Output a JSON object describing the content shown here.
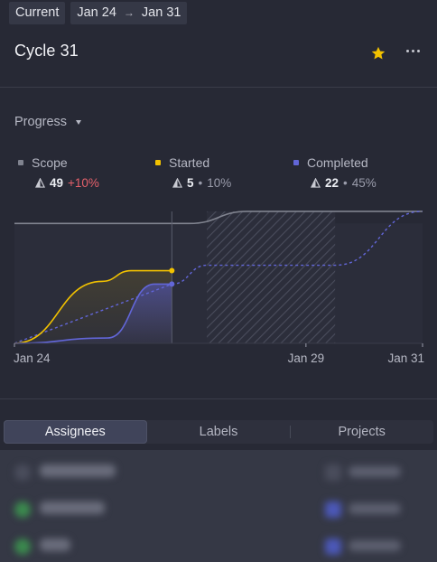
{
  "header": {
    "current_label": "Current",
    "date_start": "Jan 24",
    "date_arrow": "→",
    "date_end": "Jan 31",
    "title": "Cycle 31"
  },
  "progress": {
    "toggle_label": "Progress",
    "stats": {
      "scope": {
        "label": "Scope",
        "count": "49",
        "delta": "+10%",
        "color": "#80838f"
      },
      "started": {
        "label": "Started",
        "count": "5",
        "percent": "10%",
        "color": "#f2c200"
      },
      "completed": {
        "label": "Completed",
        "count": "22",
        "percent": "45%",
        "color": "#6266d8"
      }
    }
  },
  "chart_data": {
    "type": "line",
    "x_ticks": [
      "Jan 24",
      "Jan 29",
      "Jan 31"
    ],
    "series": [
      {
        "name": "Scope",
        "color": "#80838f",
        "x": [
          0,
          3,
          4,
          7
        ],
        "y": [
          44.5,
          44.5,
          49,
          49
        ]
      },
      {
        "name": "Started",
        "color": "#f2c200",
        "x": [
          0,
          1.5,
          2.0,
          2.7
        ],
        "y": [
          0,
          23,
          27,
          27
        ]
      },
      {
        "name": "Completed",
        "color": "#6266d8",
        "x": [
          0,
          1.6,
          2.4,
          2.7
        ],
        "y": [
          0,
          2,
          22,
          22
        ]
      },
      {
        "name": "Completed projection",
        "color": "#6266d8",
        "dashed": true,
        "x": [
          0,
          2.7,
          3.3,
          5.5,
          7
        ],
        "y": [
          0,
          22,
          29,
          29,
          49
        ]
      }
    ],
    "current_day": 2.7,
    "weekend": [
      3.3,
      5.5
    ],
    "ylim": [
      0,
      52
    ],
    "xlim": [
      0,
      7
    ]
  },
  "tabs": [
    {
      "label": "Assignees",
      "active": true
    },
    {
      "label": "Labels",
      "active": false
    },
    {
      "label": "Projects",
      "active": false
    }
  ],
  "blurred_rows": [
    {
      "icon_color": "#4a4d5c",
      "chip_color": "#4a4d5c"
    },
    {
      "icon_color": "#3b8a4e",
      "chip_color": "#4c58b8"
    },
    {
      "icon_color": "#3b8a4e",
      "chip_color": "#4c58b8"
    }
  ]
}
